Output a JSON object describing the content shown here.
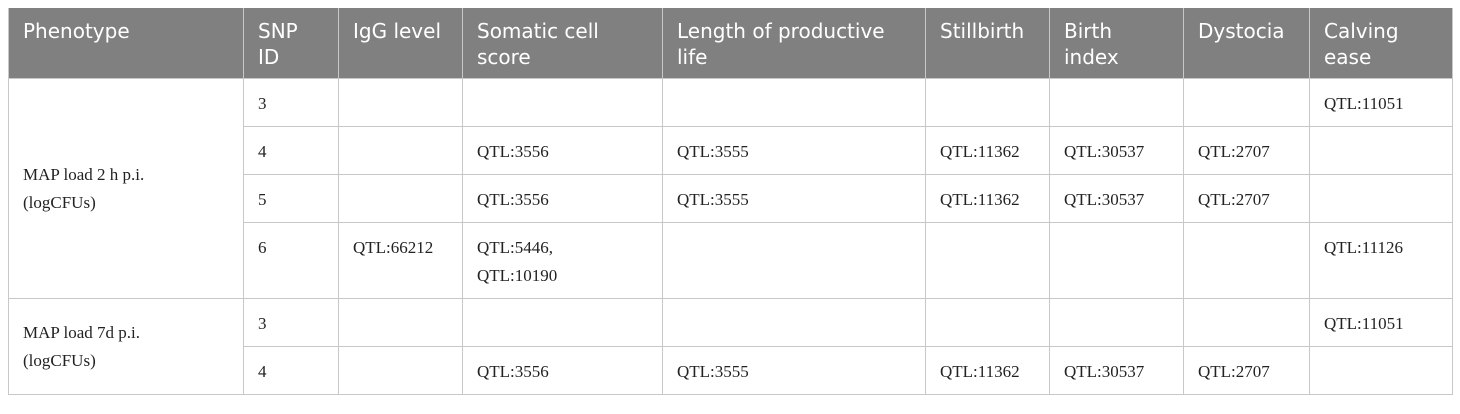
{
  "table": {
    "header": [
      "Phenotype",
      "SNP ID",
      "IgG level",
      "Somatic cell score",
      "Length of productive life",
      "Stillbirth",
      "Birth index",
      "Dystocia",
      "Calving ease"
    ],
    "groups": [
      {
        "phenotype": [
          "MAP load 2 h p.i.",
          "(logCFUs)"
        ],
        "rows": [
          [
            "3",
            null,
            null,
            null,
            null,
            null,
            null,
            "QTL:11051"
          ],
          [
            "4",
            null,
            "QTL:3556",
            "QTL:3555",
            "QTL:11362",
            "QTL:30537",
            "QTL:2707",
            null
          ],
          [
            "5",
            null,
            "QTL:3556",
            "QTL:3555",
            "QTL:11362",
            "QTL:30537",
            "QTL:2707",
            null
          ],
          [
            "6",
            "QTL:66212",
            [
              "QTL:5446,",
              "QTL:10190"
            ],
            null,
            null,
            null,
            null,
            "QTL:11126"
          ]
        ]
      },
      {
        "phenotype": [
          "MAP load 7d p.i.",
          "(logCFUs)"
        ],
        "rows": [
          [
            "3",
            null,
            null,
            null,
            null,
            null,
            null,
            "QTL:11051"
          ],
          [
            "4",
            null,
            "QTL:3556",
            "QTL:3555",
            "QTL:11362",
            "QTL:30537",
            "QTL:2707",
            null
          ]
        ]
      }
    ]
  }
}
